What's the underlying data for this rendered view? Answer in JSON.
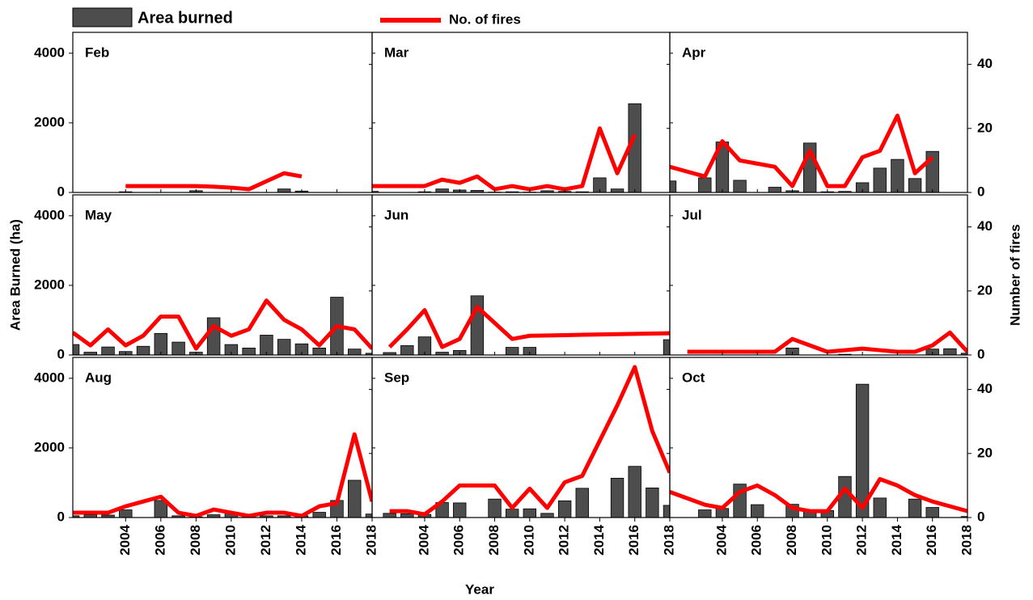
{
  "xlabel": "Year",
  "ylabel": "Area Burned (ha)",
  "y2label": "Number of fires",
  "chart_data": [
    {
      "type": "combo",
      "title": "Feb",
      "x": [
        2001,
        2002,
        2003,
        2004,
        2005,
        2006,
        2007,
        2008,
        2009,
        2010,
        2011,
        2012,
        2013,
        2014,
        2015,
        2016,
        2017,
        2018
      ],
      "xlim": [
        2001,
        2018
      ],
      "xticks": [
        2004,
        2006,
        2008,
        2010,
        2012,
        2014,
        2016,
        2018
      ],
      "ylim": [
        0,
        4600
      ],
      "yticks": [
        0,
        2000,
        4000
      ],
      "y2lim": [
        0,
        50
      ],
      "y2ticks": [
        0,
        20,
        40
      ],
      "series": [
        {
          "name": "Area burned",
          "type": "bar",
          "color": "#4d4d4d",
          "values": [
            0,
            0,
            0,
            20,
            0,
            0,
            0,
            50,
            0,
            0,
            0,
            0,
            100,
            40,
            0,
            0,
            0,
            0
          ]
        },
        {
          "name": "No. of fires",
          "type": "line",
          "axis": "y2",
          "color": "#ff0000",
          "values": [
            null,
            null,
            null,
            2,
            2,
            2,
            2,
            2,
            1.8,
            1.5,
            1,
            3.5,
            6,
            5,
            null,
            null,
            null,
            null
          ]
        }
      ]
    },
    {
      "type": "combo",
      "title": "Mar",
      "x": [
        2001,
        2002,
        2003,
        2004,
        2005,
        2006,
        2007,
        2008,
        2009,
        2010,
        2011,
        2012,
        2013,
        2014,
        2015,
        2016,
        2017,
        2018
      ],
      "xlim": [
        2001,
        2018
      ],
      "xticks": [
        2004,
        2006,
        2008,
        2010,
        2012,
        2014,
        2016,
        2018
      ],
      "ylim": [
        0,
        4600
      ],
      "yticks": [
        0,
        2000,
        4000
      ],
      "y2lim": [
        0,
        50
      ],
      "y2ticks": [
        0,
        20,
        40
      ],
      "series": [
        {
          "name": "Area burned",
          "type": "bar",
          "color": "#4d4d4d",
          "values": [
            30,
            0,
            0,
            20,
            100,
            70,
            60,
            10,
            20,
            10,
            50,
            30,
            20,
            420,
            100,
            2550,
            0,
            0
          ]
        },
        {
          "name": "No. of fires",
          "type": "line",
          "axis": "y2",
          "color": "#ff0000",
          "values": [
            2,
            2,
            2,
            2,
            4,
            3,
            5,
            1,
            2,
            1,
            2,
            1,
            2,
            20,
            6,
            18,
            null,
            null
          ]
        }
      ]
    },
    {
      "type": "combo",
      "title": "Apr",
      "x": [
        2001,
        2002,
        2003,
        2004,
        2005,
        2006,
        2007,
        2008,
        2009,
        2010,
        2011,
        2012,
        2013,
        2014,
        2015,
        2016,
        2017,
        2018
      ],
      "xlim": [
        2001,
        2018
      ],
      "xticks": [
        2004,
        2006,
        2008,
        2010,
        2012,
        2014,
        2016,
        2018
      ],
      "ylim": [
        0,
        4600
      ],
      "yticks": [
        0,
        2000,
        4000
      ],
      "y2lim": [
        0,
        50
      ],
      "y2ticks": [
        0,
        20,
        40
      ],
      "series": [
        {
          "name": "Area burned",
          "type": "bar",
          "color": "#4d4d4d",
          "values": [
            330,
            0,
            420,
            1450,
            350,
            0,
            150,
            50,
            1420,
            20,
            30,
            280,
            700,
            950,
            400,
            1180,
            0,
            0
          ]
        },
        {
          "name": "No. of fires",
          "type": "line",
          "axis": "y2",
          "color": "#ff0000",
          "values": [
            8,
            6.5,
            5,
            16,
            10,
            9,
            8,
            2,
            13,
            2,
            2,
            11,
            13,
            24,
            6,
            11,
            null,
            null
          ]
        }
      ]
    },
    {
      "type": "combo",
      "title": "May",
      "x": [
        2001,
        2002,
        2003,
        2004,
        2005,
        2006,
        2007,
        2008,
        2009,
        2010,
        2011,
        2012,
        2013,
        2014,
        2015,
        2016,
        2017,
        2018
      ],
      "xlim": [
        2001,
        2018
      ],
      "xticks": [
        2004,
        2006,
        2008,
        2010,
        2012,
        2014,
        2016,
        2018
      ],
      "ylim": [
        0,
        4600
      ],
      "yticks": [
        0,
        2000,
        4000
      ],
      "y2lim": [
        0,
        50
      ],
      "y2ticks": [
        0,
        20,
        40
      ],
      "series": [
        {
          "name": "Area burned",
          "type": "bar",
          "color": "#4d4d4d",
          "values": [
            300,
            80,
            230,
            100,
            250,
            620,
            370,
            80,
            1070,
            300,
            200,
            570,
            450,
            320,
            200,
            1660,
            170,
            50
          ]
        },
        {
          "name": "No. of fires",
          "type": "line",
          "axis": "y2",
          "color": "#ff0000",
          "values": [
            7,
            3,
            8,
            3,
            6,
            12,
            12,
            2,
            9,
            6,
            8,
            17,
            11,
            8,
            3,
            9,
            8,
            2
          ]
        }
      ]
    },
    {
      "type": "combo",
      "title": "Jun",
      "x": [
        2001,
        2002,
        2003,
        2004,
        2005,
        2006,
        2007,
        2008,
        2009,
        2010,
        2011,
        2012,
        2013,
        2014,
        2015,
        2016,
        2017,
        2018
      ],
      "xlim": [
        2001,
        2018
      ],
      "xticks": [
        2004,
        2006,
        2008,
        2010,
        2012,
        2014,
        2016,
        2018
      ],
      "ylim": [
        0,
        4600
      ],
      "yticks": [
        0,
        2000,
        4000
      ],
      "y2lim": [
        0,
        50
      ],
      "y2ticks": [
        0,
        20,
        40
      ],
      "series": [
        {
          "name": "Area burned",
          "type": "bar",
          "color": "#4d4d4d",
          "values": [
            0,
            70,
            270,
            520,
            80,
            130,
            1700,
            0,
            220,
            220,
            0,
            0,
            0,
            0,
            0,
            0,
            0,
            440
          ]
        },
        {
          "name": "No. of fires",
          "type": "line",
          "axis": "y2",
          "color": "#ff0000",
          "values": [
            null,
            2.5,
            8,
            14,
            2.5,
            5,
            15,
            10,
            5,
            6,
            6.1,
            6.2,
            6.3,
            6.4,
            6.5,
            6.6,
            6.7,
            6.8
          ]
        }
      ]
    },
    {
      "type": "combo",
      "title": "Jul",
      "x": [
        2001,
        2002,
        2003,
        2004,
        2005,
        2006,
        2007,
        2008,
        2009,
        2010,
        2011,
        2012,
        2013,
        2014,
        2015,
        2016,
        2017,
        2018
      ],
      "xlim": [
        2001,
        2018
      ],
      "xticks": [
        2004,
        2006,
        2008,
        2010,
        2012,
        2014,
        2016,
        2018
      ],
      "ylim": [
        0,
        4600
      ],
      "yticks": [
        0,
        2000,
        4000
      ],
      "y2lim": [
        0,
        50
      ],
      "y2ticks": [
        0,
        20,
        40
      ],
      "series": [
        {
          "name": "Area burned",
          "type": "bar",
          "color": "#4d4d4d",
          "values": [
            0,
            0,
            0,
            0,
            0,
            0,
            0,
            200,
            0,
            0,
            20,
            0,
            0,
            0,
            0,
            170,
            180,
            50
          ]
        },
        {
          "name": "No. of fires",
          "type": "line",
          "axis": "y2",
          "color": "#ff0000",
          "values": [
            null,
            1,
            1,
            1,
            1,
            1,
            1,
            5,
            3,
            1,
            1.5,
            2,
            1.5,
            1,
            1,
            3,
            7,
            1
          ]
        }
      ]
    },
    {
      "type": "combo",
      "title": "Aug",
      "x": [
        2001,
        2002,
        2003,
        2004,
        2005,
        2006,
        2007,
        2008,
        2009,
        2010,
        2011,
        2012,
        2013,
        2014,
        2015,
        2016,
        2017,
        2018
      ],
      "xlim": [
        2001,
        2018
      ],
      "xticks": [
        2004,
        2006,
        2008,
        2010,
        2012,
        2014,
        2016,
        2018
      ],
      "ylim": [
        0,
        4600
      ],
      "yticks": [
        0,
        2000,
        4000
      ],
      "y2lim": [
        0,
        50
      ],
      "y2ticks": [
        0,
        20,
        40
      ],
      "series": [
        {
          "name": "Area burned",
          "type": "bar",
          "color": "#4d4d4d",
          "values": [
            50,
            80,
            70,
            220,
            0,
            490,
            50,
            20,
            80,
            130,
            60,
            50,
            50,
            50,
            150,
            490,
            1070,
            100
          ]
        },
        {
          "name": "No. of fires",
          "type": "line",
          "axis": "y2",
          "color": "#ff0000",
          "values": [
            1.5,
            1.5,
            1.5,
            3.5,
            5,
            6.5,
            1.5,
            0.5,
            2.5,
            1.5,
            0.5,
            1.5,
            1.5,
            0.5,
            3.5,
            4.5,
            26,
            5
          ]
        }
      ]
    },
    {
      "type": "combo",
      "title": "Sep",
      "x": [
        2001,
        2002,
        2003,
        2004,
        2005,
        2006,
        2007,
        2008,
        2009,
        2010,
        2011,
        2012,
        2013,
        2014,
        2015,
        2016,
        2017,
        2018
      ],
      "xlim": [
        2001,
        2018
      ],
      "xticks": [
        2004,
        2006,
        2008,
        2010,
        2012,
        2014,
        2016,
        2018
      ],
      "ylim": [
        0,
        4600
      ],
      "yticks": [
        0,
        2000,
        4000
      ],
      "y2lim": [
        0,
        50
      ],
      "y2ticks": [
        0,
        20,
        40
      ],
      "series": [
        {
          "name": "Area burned",
          "type": "bar",
          "color": "#4d4d4d",
          "values": [
            0,
            120,
            110,
            90,
            430,
            420,
            0,
            530,
            240,
            250,
            120,
            480,
            840,
            0,
            1130,
            1470,
            850,
            350
          ]
        },
        {
          "name": "No. of fires",
          "type": "line",
          "axis": "y2",
          "color": "#ff0000",
          "values": [
            null,
            2,
            2,
            1,
            5,
            10,
            10,
            10,
            3,
            9,
            3,
            11,
            13,
            24,
            35,
            47,
            27,
            14
          ]
        }
      ]
    },
    {
      "type": "combo",
      "title": "Oct",
      "x": [
        2001,
        2002,
        2003,
        2004,
        2005,
        2006,
        2007,
        2008,
        2009,
        2010,
        2011,
        2012,
        2013,
        2014,
        2015,
        2016,
        2017,
        2018
      ],
      "xlim": [
        2001,
        2018
      ],
      "xticks": [
        2004,
        2006,
        2008,
        2010,
        2012,
        2014,
        2016,
        2018
      ],
      "ylim": [
        0,
        4600
      ],
      "yticks": [
        0,
        2000,
        4000
      ],
      "y2lim": [
        0,
        50
      ],
      "y2ticks": [
        0,
        20,
        40
      ],
      "series": [
        {
          "name": "Area burned",
          "type": "bar",
          "color": "#4d4d4d",
          "values": [
            0,
            0,
            220,
            260,
            960,
            370,
            0,
            380,
            200,
            200,
            1180,
            3830,
            560,
            0,
            530,
            290,
            0,
            30
          ]
        },
        {
          "name": "No. of fires",
          "type": "line",
          "axis": "y2",
          "color": "#ff0000",
          "values": [
            8,
            6,
            4,
            3,
            8,
            10,
            7,
            3,
            2,
            2,
            9,
            3,
            12,
            10,
            7,
            5,
            3.5,
            2
          ]
        }
      ]
    }
  ]
}
